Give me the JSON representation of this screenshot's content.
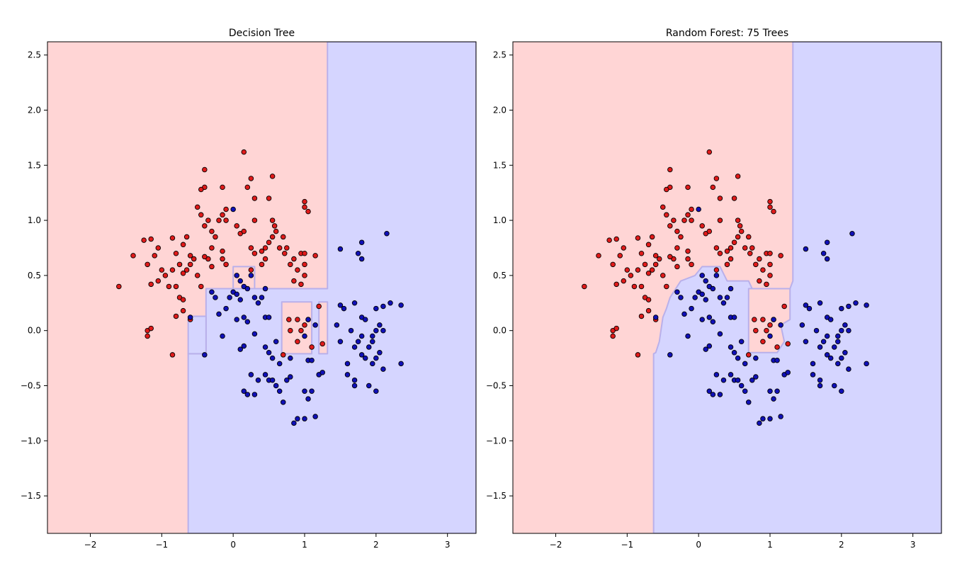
{
  "colors": {
    "class_0_region": "#ffd5d5",
    "class_1_region": "#d5d5ff",
    "class_0_point": "#e01a1a",
    "class_1_point": "#1010b8",
    "boundary": "#b9b0ea",
    "point_edge": "#000000"
  },
  "chart_data": [
    {
      "type": "scatter",
      "title": "Decision Tree",
      "xlabel": "",
      "ylabel": "",
      "xlim": [
        -2.6,
        3.4
      ],
      "ylim": [
        -1.84,
        2.62
      ],
      "xticks": [
        -2,
        -1,
        0,
        1,
        2,
        3
      ],
      "yticks": [
        -1.5,
        -1.0,
        -0.5,
        0.0,
        0.5,
        1.0,
        1.5,
        2.0,
        2.5
      ],
      "xtick_labels": [
        "−2",
        "−1",
        "0",
        "1",
        "2",
        "3"
      ],
      "ytick_labels": [
        "−1.5",
        "−1.0",
        "−0.5",
        "0.0",
        "0.5",
        "1.0",
        "1.5",
        "2.0",
        "2.5"
      ],
      "grid": false,
      "background_class": 0,
      "region_class1": [
        [
          [
            -0.63,
            -1.84
          ],
          [
            3.4,
            -1.84
          ],
          [
            3.4,
            2.62
          ],
          [
            1.32,
            2.62
          ],
          [
            1.32,
            0.38
          ],
          [
            -0.38,
            0.38
          ],
          [
            -0.38,
            -0.21
          ],
          [
            -0.63,
            -0.21
          ]
        ],
        [
          [
            -0.38,
            -0.21
          ],
          [
            -0.38,
            0.13
          ],
          [
            -0.63,
            0.13
          ],
          [
            -0.63,
            -0.21
          ]
        ]
      ],
      "region_class0": [
        [
          [
            0.0,
            0.38
          ],
          [
            0.3,
            0.38
          ],
          [
            0.3,
            0.58
          ],
          [
            0.0,
            0.58
          ]
        ],
        [
          [
            0.68,
            0.26
          ],
          [
            1.1,
            0.26
          ],
          [
            1.1,
            -0.21
          ],
          [
            0.68,
            -0.21
          ]
        ],
        [
          [
            1.2,
            0.26
          ],
          [
            1.32,
            0.26
          ],
          [
            1.32,
            -0.21
          ],
          [
            1.2,
            -0.21
          ]
        ]
      ]
    },
    {
      "type": "scatter",
      "title": "Random Forest: 75 Trees",
      "xlabel": "",
      "ylabel": "",
      "xlim": [
        -2.6,
        3.4
      ],
      "ylim": [
        -1.84,
        2.62
      ],
      "xticks": [
        -2,
        -1,
        0,
        1,
        2,
        3
      ],
      "yticks": [
        -1.5,
        -1.0,
        -0.5,
        0.0,
        0.5,
        1.0,
        1.5,
        2.0,
        2.5
      ],
      "xtick_labels": [
        "−2",
        "−1",
        "0",
        "1",
        "2",
        "3"
      ],
      "ytick_labels": [
        "−1.5",
        "−1.0",
        "−0.5",
        "0.0",
        "0.5",
        "1.0",
        "1.5",
        "2.0",
        "2.5"
      ],
      "grid": false,
      "background_class": 0,
      "region_class1": [
        [
          [
            -0.63,
            -1.84
          ],
          [
            3.4,
            -1.84
          ],
          [
            3.4,
            2.62
          ],
          [
            1.32,
            2.62
          ],
          [
            1.32,
            0.45
          ],
          [
            1.28,
            0.38
          ],
          [
            0.75,
            0.38
          ],
          [
            0.7,
            0.45
          ],
          [
            0.4,
            0.45
          ],
          [
            0.3,
            0.58
          ],
          [
            0.05,
            0.58
          ],
          [
            -0.05,
            0.5
          ],
          [
            -0.25,
            0.45
          ],
          [
            -0.4,
            0.3
          ],
          [
            -0.45,
            0.2
          ],
          [
            -0.5,
            0.12
          ],
          [
            -0.55,
            -0.1
          ],
          [
            -0.6,
            -0.2
          ],
          [
            -0.63,
            -0.21
          ]
        ]
      ],
      "region_class0": [
        [
          [
            0.7,
            0.38
          ],
          [
            1.28,
            0.38
          ],
          [
            1.28,
            0.1
          ],
          [
            1.15,
            0.05
          ],
          [
            1.2,
            -0.1
          ],
          [
            1.1,
            -0.2
          ],
          [
            0.9,
            -0.2
          ],
          [
            0.7,
            -0.2
          ]
        ]
      ]
    }
  ],
  "points": {
    "class_0": [
      [
        -1.6,
        0.4
      ],
      [
        -1.4,
        0.68
      ],
      [
        -1.25,
        0.82
      ],
      [
        -1.15,
        0.83
      ],
      [
        -1.05,
        0.75
      ],
      [
        -1.2,
        0.6
      ],
      [
        -1.1,
        0.68
      ],
      [
        -1.0,
        0.55
      ],
      [
        -0.95,
        0.5
      ],
      [
        -1.05,
        0.45
      ],
      [
        -1.15,
        0.42
      ],
      [
        -0.9,
        0.4
      ],
      [
        -0.8,
        0.4
      ],
      [
        -0.85,
        0.55
      ],
      [
        -0.75,
        0.6
      ],
      [
        -0.7,
        0.52
      ],
      [
        -0.8,
        0.7
      ],
      [
        -0.7,
        0.78
      ],
      [
        -0.65,
        0.85
      ],
      [
        -0.6,
        0.68
      ],
      [
        -0.55,
        0.65
      ],
      [
        -0.5,
        0.5
      ],
      [
        -0.45,
        0.4
      ],
      [
        -0.6,
        0.6
      ],
      [
        -0.65,
        0.55
      ],
      [
        -0.85,
        0.84
      ],
      [
        -0.75,
        0.3
      ],
      [
        -0.7,
        0.28
      ],
      [
        -0.8,
        0.13
      ],
      [
        -0.7,
        0.18
      ],
      [
        -0.6,
        0.1
      ],
      [
        -1.2,
        0.0
      ],
      [
        -1.15,
        0.02
      ],
      [
        -1.2,
        -0.05
      ],
      [
        -0.85,
        -0.22
      ],
      [
        -0.5,
        1.12
      ],
      [
        -0.45,
        1.05
      ],
      [
        -0.4,
        0.95
      ],
      [
        -0.35,
        1.0
      ],
      [
        -0.4,
        1.3
      ],
      [
        -0.4,
        1.46
      ],
      [
        -0.45,
        1.28
      ],
      [
        -0.3,
        0.9
      ],
      [
        -0.25,
        0.85
      ],
      [
        -0.3,
        0.75
      ],
      [
        -0.35,
        0.65
      ],
      [
        -0.4,
        0.67
      ],
      [
        -0.3,
        0.58
      ],
      [
        -0.15,
        0.72
      ],
      [
        -0.15,
        0.65
      ],
      [
        -0.1,
        0.6
      ],
      [
        -0.2,
        1.0
      ],
      [
        -0.15,
        1.05
      ],
      [
        -0.1,
        1.1
      ],
      [
        -0.1,
        1.0
      ],
      [
        -0.15,
        1.3
      ],
      [
        0.05,
        0.95
      ],
      [
        0.1,
        0.88
      ],
      [
        0.15,
        0.9
      ],
      [
        0.15,
        1.62
      ],
      [
        0.2,
        1.3
      ],
      [
        0.25,
        1.38
      ],
      [
        0.3,
        1.2
      ],
      [
        0.3,
        1.0
      ],
      [
        0.25,
        0.75
      ],
      [
        0.3,
        0.7
      ],
      [
        0.25,
        0.55
      ],
      [
        0.4,
        0.6
      ],
      [
        0.45,
        0.65
      ],
      [
        0.4,
        0.72
      ],
      [
        0.45,
        0.75
      ],
      [
        0.55,
        1.4
      ],
      [
        0.5,
        1.2
      ],
      [
        0.55,
        1.0
      ],
      [
        0.58,
        0.95
      ],
      [
        0.6,
        0.9
      ],
      [
        0.5,
        0.8
      ],
      [
        0.55,
        0.85
      ],
      [
        0.65,
        0.75
      ],
      [
        0.7,
        0.85
      ],
      [
        0.72,
        0.7
      ],
      [
        0.75,
        0.75
      ],
      [
        0.8,
        0.6
      ],
      [
        0.85,
        0.65
      ],
      [
        0.9,
        0.55
      ],
      [
        0.95,
        0.7
      ],
      [
        0.85,
        0.45
      ],
      [
        0.95,
        0.42
      ],
      [
        1.0,
        0.7
      ],
      [
        1.0,
        0.6
      ],
      [
        1.0,
        0.5
      ],
      [
        1.0,
        1.17
      ],
      [
        1.0,
        1.12
      ],
      [
        1.05,
        1.08
      ],
      [
        1.15,
        0.68
      ],
      [
        0.78,
        0.1
      ],
      [
        0.9,
        -0.1
      ],
      [
        0.95,
        0.0
      ],
      [
        1.0,
        0.05
      ],
      [
        1.05,
        0.1
      ],
      [
        0.9,
        0.1
      ],
      [
        1.2,
        0.22
      ],
      [
        1.1,
        -0.15
      ],
      [
        1.25,
        -0.12
      ],
      [
        0.7,
        -0.22
      ],
      [
        0.8,
        0.0
      ]
    ],
    "class_1": [
      [
        -0.6,
        0.12
      ],
      [
        -0.4,
        -0.22
      ],
      [
        -0.3,
        0.35
      ],
      [
        -0.25,
        0.3
      ],
      [
        -0.2,
        0.15
      ],
      [
        -0.15,
        -0.05
      ],
      [
        -0.1,
        0.2
      ],
      [
        -0.05,
        0.3
      ],
      [
        0.0,
        0.35
      ],
      [
        0.05,
        0.33
      ],
      [
        0.0,
        1.1
      ],
      [
        0.05,
        0.5
      ],
      [
        0.1,
        0.45
      ],
      [
        0.15,
        0.4
      ],
      [
        0.1,
        0.28
      ],
      [
        0.05,
        0.1
      ],
      [
        0.1,
        -0.17
      ],
      [
        0.15,
        -0.14
      ],
      [
        0.15,
        0.12
      ],
      [
        0.2,
        0.08
      ],
      [
        0.2,
        0.38
      ],
      [
        0.25,
        0.5
      ],
      [
        0.3,
        0.3
      ],
      [
        0.35,
        0.25
      ],
      [
        0.4,
        0.3
      ],
      [
        0.45,
        0.38
      ],
      [
        0.45,
        0.12
      ],
      [
        0.5,
        0.12
      ],
      [
        0.3,
        -0.03
      ],
      [
        0.25,
        -0.4
      ],
      [
        0.15,
        -0.55
      ],
      [
        0.2,
        -0.58
      ],
      [
        0.3,
        -0.58
      ],
      [
        0.35,
        -0.45
      ],
      [
        0.45,
        -0.4
      ],
      [
        0.5,
        -0.45
      ],
      [
        0.55,
        -0.45
      ],
      [
        0.45,
        -0.15
      ],
      [
        0.5,
        -0.2
      ],
      [
        0.55,
        -0.25
      ],
      [
        0.6,
        -0.1
      ],
      [
        0.65,
        -0.3
      ],
      [
        0.6,
        -0.5
      ],
      [
        0.65,
        -0.55
      ],
      [
        0.7,
        -0.65
      ],
      [
        0.75,
        -0.45
      ],
      [
        0.8,
        -0.42
      ],
      [
        0.8,
        -0.25
      ],
      [
        0.9,
        -0.8
      ],
      [
        0.85,
        -0.84
      ],
      [
        1.0,
        -0.8
      ],
      [
        1.0,
        -0.55
      ],
      [
        1.05,
        -0.62
      ],
      [
        1.1,
        -0.55
      ],
      [
        1.15,
        -0.78
      ],
      [
        1.05,
        -0.27
      ],
      [
        1.1,
        -0.27
      ],
      [
        1.2,
        -0.4
      ],
      [
        1.25,
        -0.38
      ],
      [
        1.05,
        0.1
      ],
      [
        1.15,
        0.05
      ],
      [
        1.0,
        -0.05
      ],
      [
        1.45,
        0.05
      ],
      [
        1.5,
        -0.1
      ],
      [
        1.5,
        0.23
      ],
      [
        1.55,
        0.2
      ],
      [
        1.5,
        0.74
      ],
      [
        1.6,
        -0.4
      ],
      [
        1.7,
        -0.45
      ],
      [
        1.7,
        -0.15
      ],
      [
        1.75,
        -0.1
      ],
      [
        1.8,
        -0.05
      ],
      [
        1.8,
        0.12
      ],
      [
        1.85,
        0.1
      ],
      [
        1.65,
        0.0
      ],
      [
        1.7,
        0.25
      ],
      [
        1.75,
        0.7
      ],
      [
        1.8,
        0.65
      ],
      [
        1.8,
        0.8
      ],
      [
        1.6,
        -0.3
      ],
      [
        1.7,
        -0.5
      ],
      [
        1.8,
        -0.22
      ],
      [
        1.85,
        -0.25
      ],
      [
        1.9,
        -0.15
      ],
      [
        1.95,
        -0.05
      ],
      [
        2.0,
        0.0
      ],
      [
        2.05,
        0.05
      ],
      [
        2.1,
        0.0
      ],
      [
        2.0,
        0.2
      ],
      [
        2.1,
        0.22
      ],
      [
        2.15,
        0.88
      ],
      [
        2.2,
        0.25
      ],
      [
        1.95,
        -0.3
      ],
      [
        2.0,
        -0.25
      ],
      [
        2.05,
        -0.2
      ],
      [
        1.9,
        -0.5
      ],
      [
        2.0,
        -0.55
      ],
      [
        2.35,
        0.23
      ],
      [
        2.35,
        -0.3
      ],
      [
        2.1,
        -0.35
      ],
      [
        1.95,
        -0.1
      ]
    ]
  }
}
